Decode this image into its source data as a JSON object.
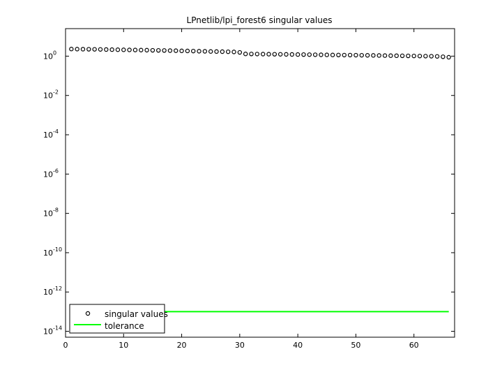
{
  "chart_data": {
    "type": "scatter",
    "title": "LPnetlib/lpi_forest6 singular values",
    "xlabel": "",
    "ylabel": "",
    "xlim": [
      0,
      67
    ],
    "ylim_exp": [
      -14.3,
      1.4
    ],
    "yscale": "log",
    "x_ticks": [
      0,
      10,
      20,
      30,
      40,
      50,
      60
    ],
    "y_tick_exponents": [
      0,
      -2,
      -4,
      -6,
      -8,
      -10,
      -12,
      -14
    ],
    "y_tick_base": "10",
    "grid": false,
    "legend": {
      "placement": "bottom-left",
      "entries": [
        "singular values",
        "tolerance"
      ]
    },
    "series": [
      {
        "name": "singular values",
        "marker": "circle",
        "color": "#000000",
        "x": [
          1,
          2,
          3,
          4,
          5,
          6,
          7,
          8,
          9,
          10,
          11,
          12,
          13,
          14,
          15,
          16,
          17,
          18,
          19,
          20,
          21,
          22,
          23,
          24,
          25,
          26,
          27,
          28,
          29,
          30,
          31,
          32,
          33,
          34,
          35,
          36,
          37,
          38,
          39,
          40,
          41,
          42,
          43,
          44,
          45,
          46,
          47,
          48,
          49,
          50,
          51,
          52,
          53,
          54,
          55,
          56,
          57,
          58,
          59,
          60,
          61,
          62,
          63,
          64,
          65,
          66
        ],
        "y": [
          2.3,
          2.28,
          2.26,
          2.24,
          2.22,
          2.2,
          2.17,
          2.14,
          2.12,
          2.1,
          2.08,
          2.05,
          2.03,
          2.01,
          1.98,
          1.96,
          1.94,
          1.91,
          1.89,
          1.86,
          1.84,
          1.81,
          1.78,
          1.76,
          1.73,
          1.71,
          1.69,
          1.67,
          1.64,
          1.55,
          1.3,
          1.29,
          1.28,
          1.27,
          1.26,
          1.25,
          1.24,
          1.23,
          1.22,
          1.21,
          1.2,
          1.19,
          1.18,
          1.17,
          1.16,
          1.15,
          1.14,
          1.13,
          1.13,
          1.12,
          1.11,
          1.1,
          1.09,
          1.08,
          1.07,
          1.06,
          1.05,
          1.04,
          1.03,
          1.02,
          1.01,
          1.0,
          0.99,
          0.97,
          0.93,
          0.88
        ]
      },
      {
        "name": "tolerance",
        "type": "line",
        "color": "#00ff00",
        "x": [
          1,
          66
        ],
        "y": [
          1e-13,
          1e-13
        ]
      }
    ]
  }
}
